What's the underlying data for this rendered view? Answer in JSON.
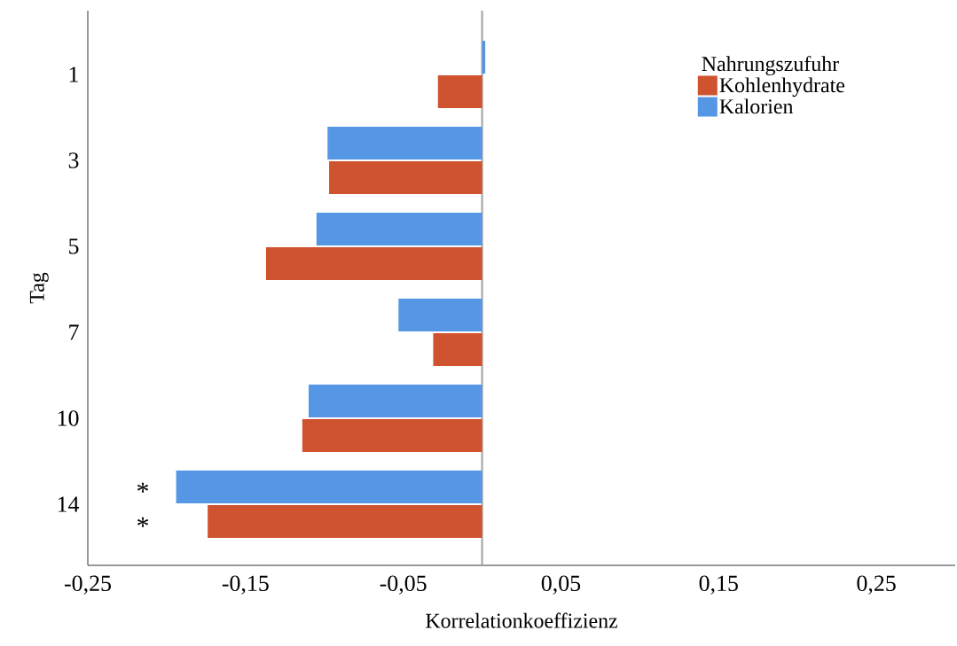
{
  "chart_data": {
    "type": "bar",
    "orientation": "horizontal",
    "xlabel": "Korrelationkoeffizienz",
    "ylabel": "Tag",
    "legend_title": "Nahrungszufuhr",
    "categories": [
      "1",
      "3",
      "5",
      "7",
      "10",
      "14"
    ],
    "series": [
      {
        "name": "Kohlenhydrate",
        "color": "#d0532f",
        "values": [
          -0.028,
          -0.097,
          -0.137,
          -0.031,
          -0.114,
          -0.174
        ]
      },
      {
        "name": "Kalorien",
        "color": "#5597e4",
        "values": [
          0.002,
          -0.098,
          -0.105,
          -0.053,
          -0.11,
          -0.194
        ]
      }
    ],
    "xlim": [
      -0.25,
      0.3
    ],
    "xticks": [
      {
        "value": -0.25,
        "label": "-0,25"
      },
      {
        "value": -0.15,
        "label": "-0,15"
      },
      {
        "value": -0.05,
        "label": "-0,05"
      },
      {
        "value": 0.05,
        "label": "0,05"
      },
      {
        "value": 0.15,
        "label": "0,15"
      },
      {
        "value": 0.25,
        "label": "0,25"
      }
    ],
    "ref_lines": [
      {
        "axis": "x",
        "value": 0,
        "color": "#a0a0a0"
      }
    ],
    "annotations": [
      "*",
      "*"
    ],
    "grid": false,
    "legend": "top right"
  }
}
